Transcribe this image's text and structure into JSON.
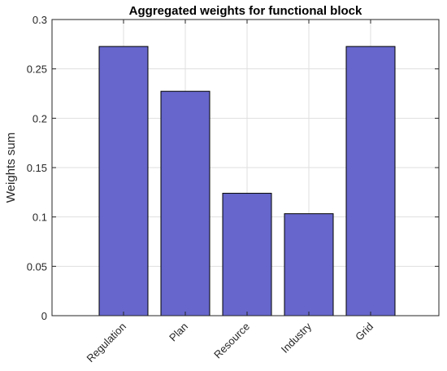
{
  "chart_data": {
    "type": "bar",
    "title": "Aggregated weights for functional block",
    "xlabel": "",
    "ylabel": "Weights sum",
    "categories": [
      "Regulation",
      "Plan",
      "Resource",
      "Industry",
      "Grid"
    ],
    "values": [
      0.2727,
      0.2273,
      0.124,
      0.1033,
      0.2727
    ],
    "ylim": [
      0,
      0.3
    ],
    "yticks": [
      0,
      0.05,
      0.1,
      0.15,
      0.2,
      0.25,
      0.3
    ],
    "ytick_labels": [
      "0",
      "0.05",
      "0.1",
      "0.15",
      "0.2",
      "0.25",
      "0.3"
    ],
    "grid": true,
    "bar_color": "#6666CC",
    "edge_color": "#000000"
  }
}
